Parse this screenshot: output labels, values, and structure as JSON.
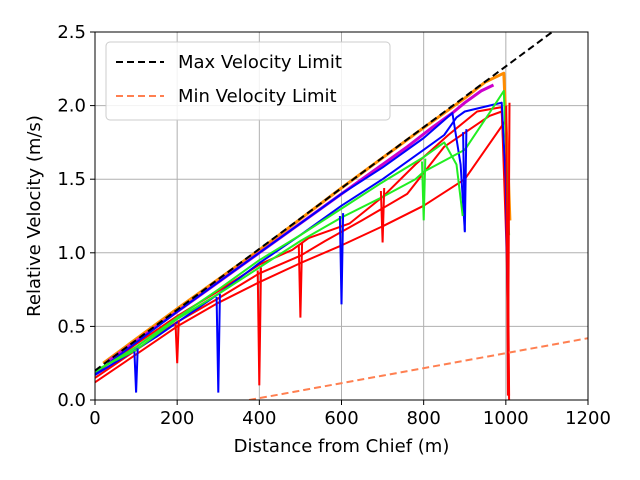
{
  "chart_data": {
    "type": "line",
    "xlabel": "Distance from Chief (m)",
    "ylabel": "Relative Velocity (m/s)",
    "xlim": [
      0,
      1200
    ],
    "ylim": [
      0,
      2.5
    ],
    "x_ticks": [
      "0",
      "200",
      "400",
      "600",
      "800",
      "1000",
      "1200"
    ],
    "y_ticks": [
      "0.0",
      "0.5",
      "1.0",
      "1.5",
      "2.0",
      "2.5"
    ],
    "grid": true,
    "legend_position": "top-left",
    "limits": [
      {
        "name": "Max Velocity Limit",
        "color": "#000000",
        "style": "dashed",
        "x": [
          0,
          1200
        ],
        "y": [
          0.2,
          2.68
        ]
      },
      {
        "name": "Min Velocity Limit",
        "color": "#ff7f50",
        "style": "dashed",
        "x": [
          375,
          1200
        ],
        "y": [
          0.0,
          0.42
        ]
      }
    ],
    "trajectories": [
      {
        "color": "#ff0000",
        "width": 2.0,
        "x": [
          0,
          100,
          200,
          300,
          400,
          500,
          600,
          700,
          800,
          900,
          1000,
          1005,
          1008
        ],
        "y": [
          0.12,
          0.31,
          0.5,
          0.66,
          0.8,
          0.93,
          1.05,
          1.18,
          1.32,
          1.5,
          1.9,
          1.0,
          0.03
        ]
      },
      {
        "color": "#ff0000",
        "width": 2.0,
        "x": [
          0,
          100,
          200,
          300,
          400,
          500,
          560,
          650,
          760,
          850,
          960,
          990,
          1003,
          1006
        ],
        "y": [
          0.15,
          0.34,
          0.53,
          0.69,
          0.86,
          0.98,
          1.08,
          1.22,
          1.4,
          1.72,
          1.93,
          1.96,
          1.2,
          0.08
        ]
      },
      {
        "color": "#ff0000",
        "width": 2.0,
        "x": [
          0,
          100,
          200,
          300,
          400,
          480,
          520,
          620,
          700,
          780,
          860,
          930,
          990,
          1002,
          1008
        ],
        "y": [
          0.18,
          0.38,
          0.57,
          0.74,
          0.92,
          1.02,
          1.1,
          1.2,
          1.38,
          1.6,
          1.8,
          1.96,
          1.99,
          1.0,
          0.0
        ]
      },
      {
        "color": "#ff8c00",
        "width": 3.0,
        "x": [
          20,
          200,
          400,
          600,
          800,
          900,
          950,
          995,
          1005,
          1010
        ],
        "y": [
          0.25,
          0.62,
          1.02,
          1.44,
          1.85,
          2.05,
          2.16,
          2.22,
          1.6,
          1.22
        ]
      },
      {
        "color": "#cc00cc",
        "width": 3.0,
        "x": [
          30,
          200,
          400,
          600,
          760,
          820,
          870,
          900,
          940,
          970
        ],
        "y": [
          0.26,
          0.6,
          1.0,
          1.4,
          1.72,
          1.85,
          1.95,
          2.02,
          2.1,
          2.14
        ]
      },
      {
        "color": "#0000ff",
        "width": 2.0,
        "x": [
          0,
          150,
          300,
          400,
          500,
          600,
          700,
          800,
          850,
          880,
          900,
          960,
          990,
          1000,
          1004
        ],
        "y": [
          0.17,
          0.43,
          0.72,
          0.93,
          1.12,
          1.32,
          1.5,
          1.7,
          1.8,
          1.92,
          1.96,
          2.0,
          2.02,
          1.5,
          0.7
        ]
      },
      {
        "color": "#0000ff",
        "width": 2.0,
        "x": [
          0,
          200,
          400,
          500,
          600,
          700,
          800,
          870,
          890,
          900
        ],
        "y": [
          0.18,
          0.6,
          1.0,
          1.2,
          1.4,
          1.58,
          1.78,
          1.95,
          1.6,
          1.15
        ]
      },
      {
        "color": "#22ee22",
        "width": 2.0,
        "x": [
          0,
          100,
          200,
          300,
          400,
          500,
          600,
          700,
          780,
          800,
          900,
          960,
          995,
          1002,
          1008
        ],
        "y": [
          0.2,
          0.34,
          0.55,
          0.72,
          0.9,
          1.08,
          1.24,
          1.38,
          1.5,
          1.55,
          1.7,
          1.95,
          2.1,
          1.6,
          1.12
        ]
      },
      {
        "color": "#22ee22",
        "width": 2.0,
        "x": [
          0,
          100,
          200,
          300,
          400,
          500,
          600,
          700,
          800,
          850,
          880,
          895
        ],
        "y": [
          0.19,
          0.36,
          0.56,
          0.75,
          0.95,
          1.12,
          1.3,
          1.48,
          1.65,
          1.75,
          1.6,
          1.25
        ]
      }
    ],
    "spikes": [
      {
        "x": 100,
        "y_top": 0.33,
        "y_bottom": 0.05,
        "color": "#0000ff"
      },
      {
        "x": 200,
        "y_top": 0.52,
        "y_bottom": 0.25,
        "color": "#ff0000"
      },
      {
        "x": 300,
        "y_top": 0.7,
        "y_bottom": 0.05,
        "color": "#0000ff"
      },
      {
        "x": 400,
        "y_top": 0.88,
        "y_bottom": 0.1,
        "color": "#ff0000"
      },
      {
        "x": 500,
        "y_top": 1.05,
        "y_bottom": 0.56,
        "color": "#ff0000"
      },
      {
        "x": 600,
        "y_top": 1.25,
        "y_bottom": 0.65,
        "color": "#0000ff"
      },
      {
        "x": 700,
        "y_top": 1.42,
        "y_bottom": 1.07,
        "color": "#ff0000"
      },
      {
        "x": 800,
        "y_top": 1.62,
        "y_bottom": 1.22,
        "color": "#22ee22"
      },
      {
        "x": 900,
        "y_top": 1.82,
        "y_bottom": 1.14,
        "color": "#0000ff"
      },
      {
        "x": 1005,
        "y_top": 2.0,
        "y_bottom": 0.03,
        "color": "#ff0000"
      }
    ]
  }
}
